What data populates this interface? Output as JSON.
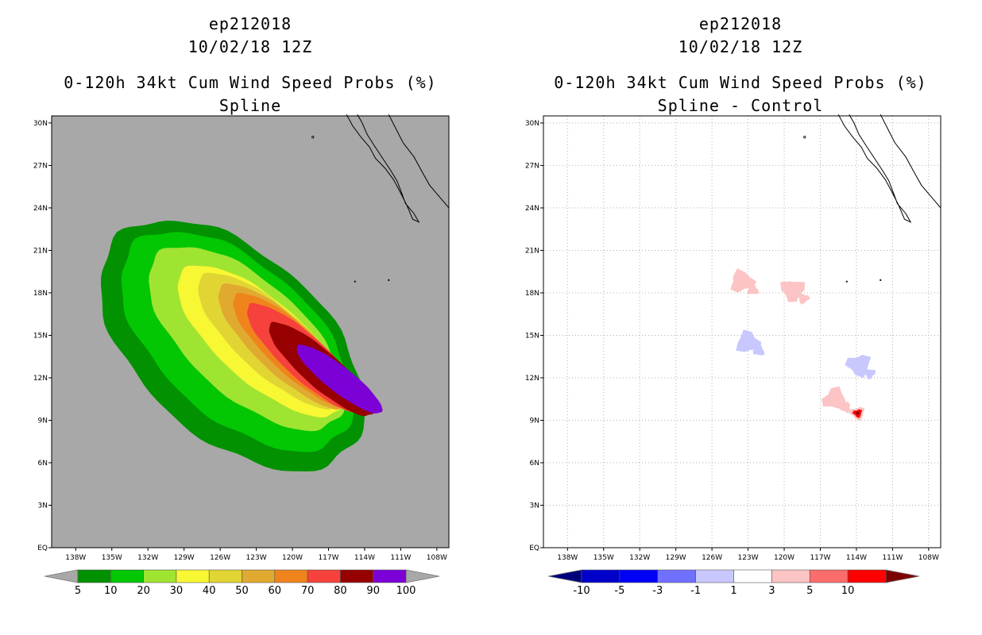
{
  "left_titles": {
    "line1": "ep212018",
    "line2": "10/02/18 12Z",
    "line3": "0-120h 34kt Cum Wind Speed Probs (%)",
    "line4": "Spline"
  },
  "right_titles": {
    "line1": "ep212018",
    "line2": "10/02/18 12Z",
    "line3": "0-120h 34kt Cum Wind Speed Probs (%)",
    "line4": "Spline - Control"
  },
  "chart_data": [
    {
      "type": "heatmap",
      "title": "0-120h 34kt Cum Wind Speed Probs (%)",
      "subtitle": "Spline",
      "x_ticks": [
        "138W",
        "135W",
        "132W",
        "129W",
        "126W",
        "123W",
        "120W",
        "117W",
        "114W",
        "111W",
        "108W"
      ],
      "y_ticks": [
        "30N",
        "27N",
        "24N",
        "21N",
        "18N",
        "15N",
        "12N",
        "9N",
        "6N",
        "3N",
        "EQ"
      ],
      "xlim": [
        -140,
        -107
      ],
      "ylim": [
        0,
        30.5
      ],
      "grid": false,
      "colorbar": {
        "labels": [
          "5",
          "10",
          "20",
          "30",
          "40",
          "50",
          "60",
          "70",
          "80",
          "90",
          "100"
        ],
        "colors": [
          "#019101",
          "#02c702",
          "#a0e432",
          "#f7f733",
          "#e1d534",
          "#e0a930",
          "#f0841c",
          "#f6413d",
          "#960000",
          "#7b01d6"
        ],
        "under": "#a8a8a8",
        "over": "#a8a8a8"
      },
      "probability_contours": [
        {
          "level": 5,
          "color": "#019101"
        },
        {
          "level": 10,
          "color": "#02c702"
        },
        {
          "level": 20,
          "color": "#a0e432"
        },
        {
          "level": 30,
          "color": "#f7f733"
        },
        {
          "level": 40,
          "color": "#e1d534"
        },
        {
          "level": 50,
          "color": "#e0a930"
        },
        {
          "level": 60,
          "color": "#f0841c"
        },
        {
          "level": 70,
          "color": "#f6413d"
        },
        {
          "level": 80,
          "color": "#960000"
        },
        {
          "level": 90,
          "color": "#7b01d6"
        }
      ]
    },
    {
      "type": "heatmap",
      "title": "0-120h 34kt Cum Wind Speed Probs (%)",
      "subtitle": "Spline - Control",
      "x_ticks": [
        "138W",
        "135W",
        "132W",
        "129W",
        "126W",
        "123W",
        "120W",
        "117W",
        "114W",
        "111W",
        "108W"
      ],
      "y_ticks": [
        "30N",
        "27N",
        "24N",
        "21N",
        "18N",
        "15N",
        "12N",
        "9N",
        "6N",
        "3N",
        "EQ"
      ],
      "xlim": [
        -140,
        -107
      ],
      "ylim": [
        0,
        30.5
      ],
      "grid": true,
      "colorbar": {
        "labels": [
          "-10",
          "-5",
          "-3",
          "-1",
          "1",
          "3",
          "5",
          "10"
        ],
        "colors": [
          "#0000ca",
          "#0000f6",
          "#7070ff",
          "#c8c8ff",
          "#ffffff",
          "#fcc4c4",
          "#fb6c6c",
          "#ff0000"
        ],
        "under": "#00007d",
        "over": "#7d0000"
      },
      "difference_regions": [
        {
          "lon": -123.5,
          "lat": 18.8,
          "value": 2
        },
        {
          "lon": -119.3,
          "lat": 18.2,
          "value": 2
        },
        {
          "lon": -123.0,
          "lat": 14.5,
          "value": -2
        },
        {
          "lon": -113.8,
          "lat": 12.9,
          "value": -2
        },
        {
          "lon": -115.8,
          "lat": 10.5,
          "value": 2
        },
        {
          "lon": -113.9,
          "lat": 9.5,
          "value": 6
        }
      ]
    }
  ]
}
